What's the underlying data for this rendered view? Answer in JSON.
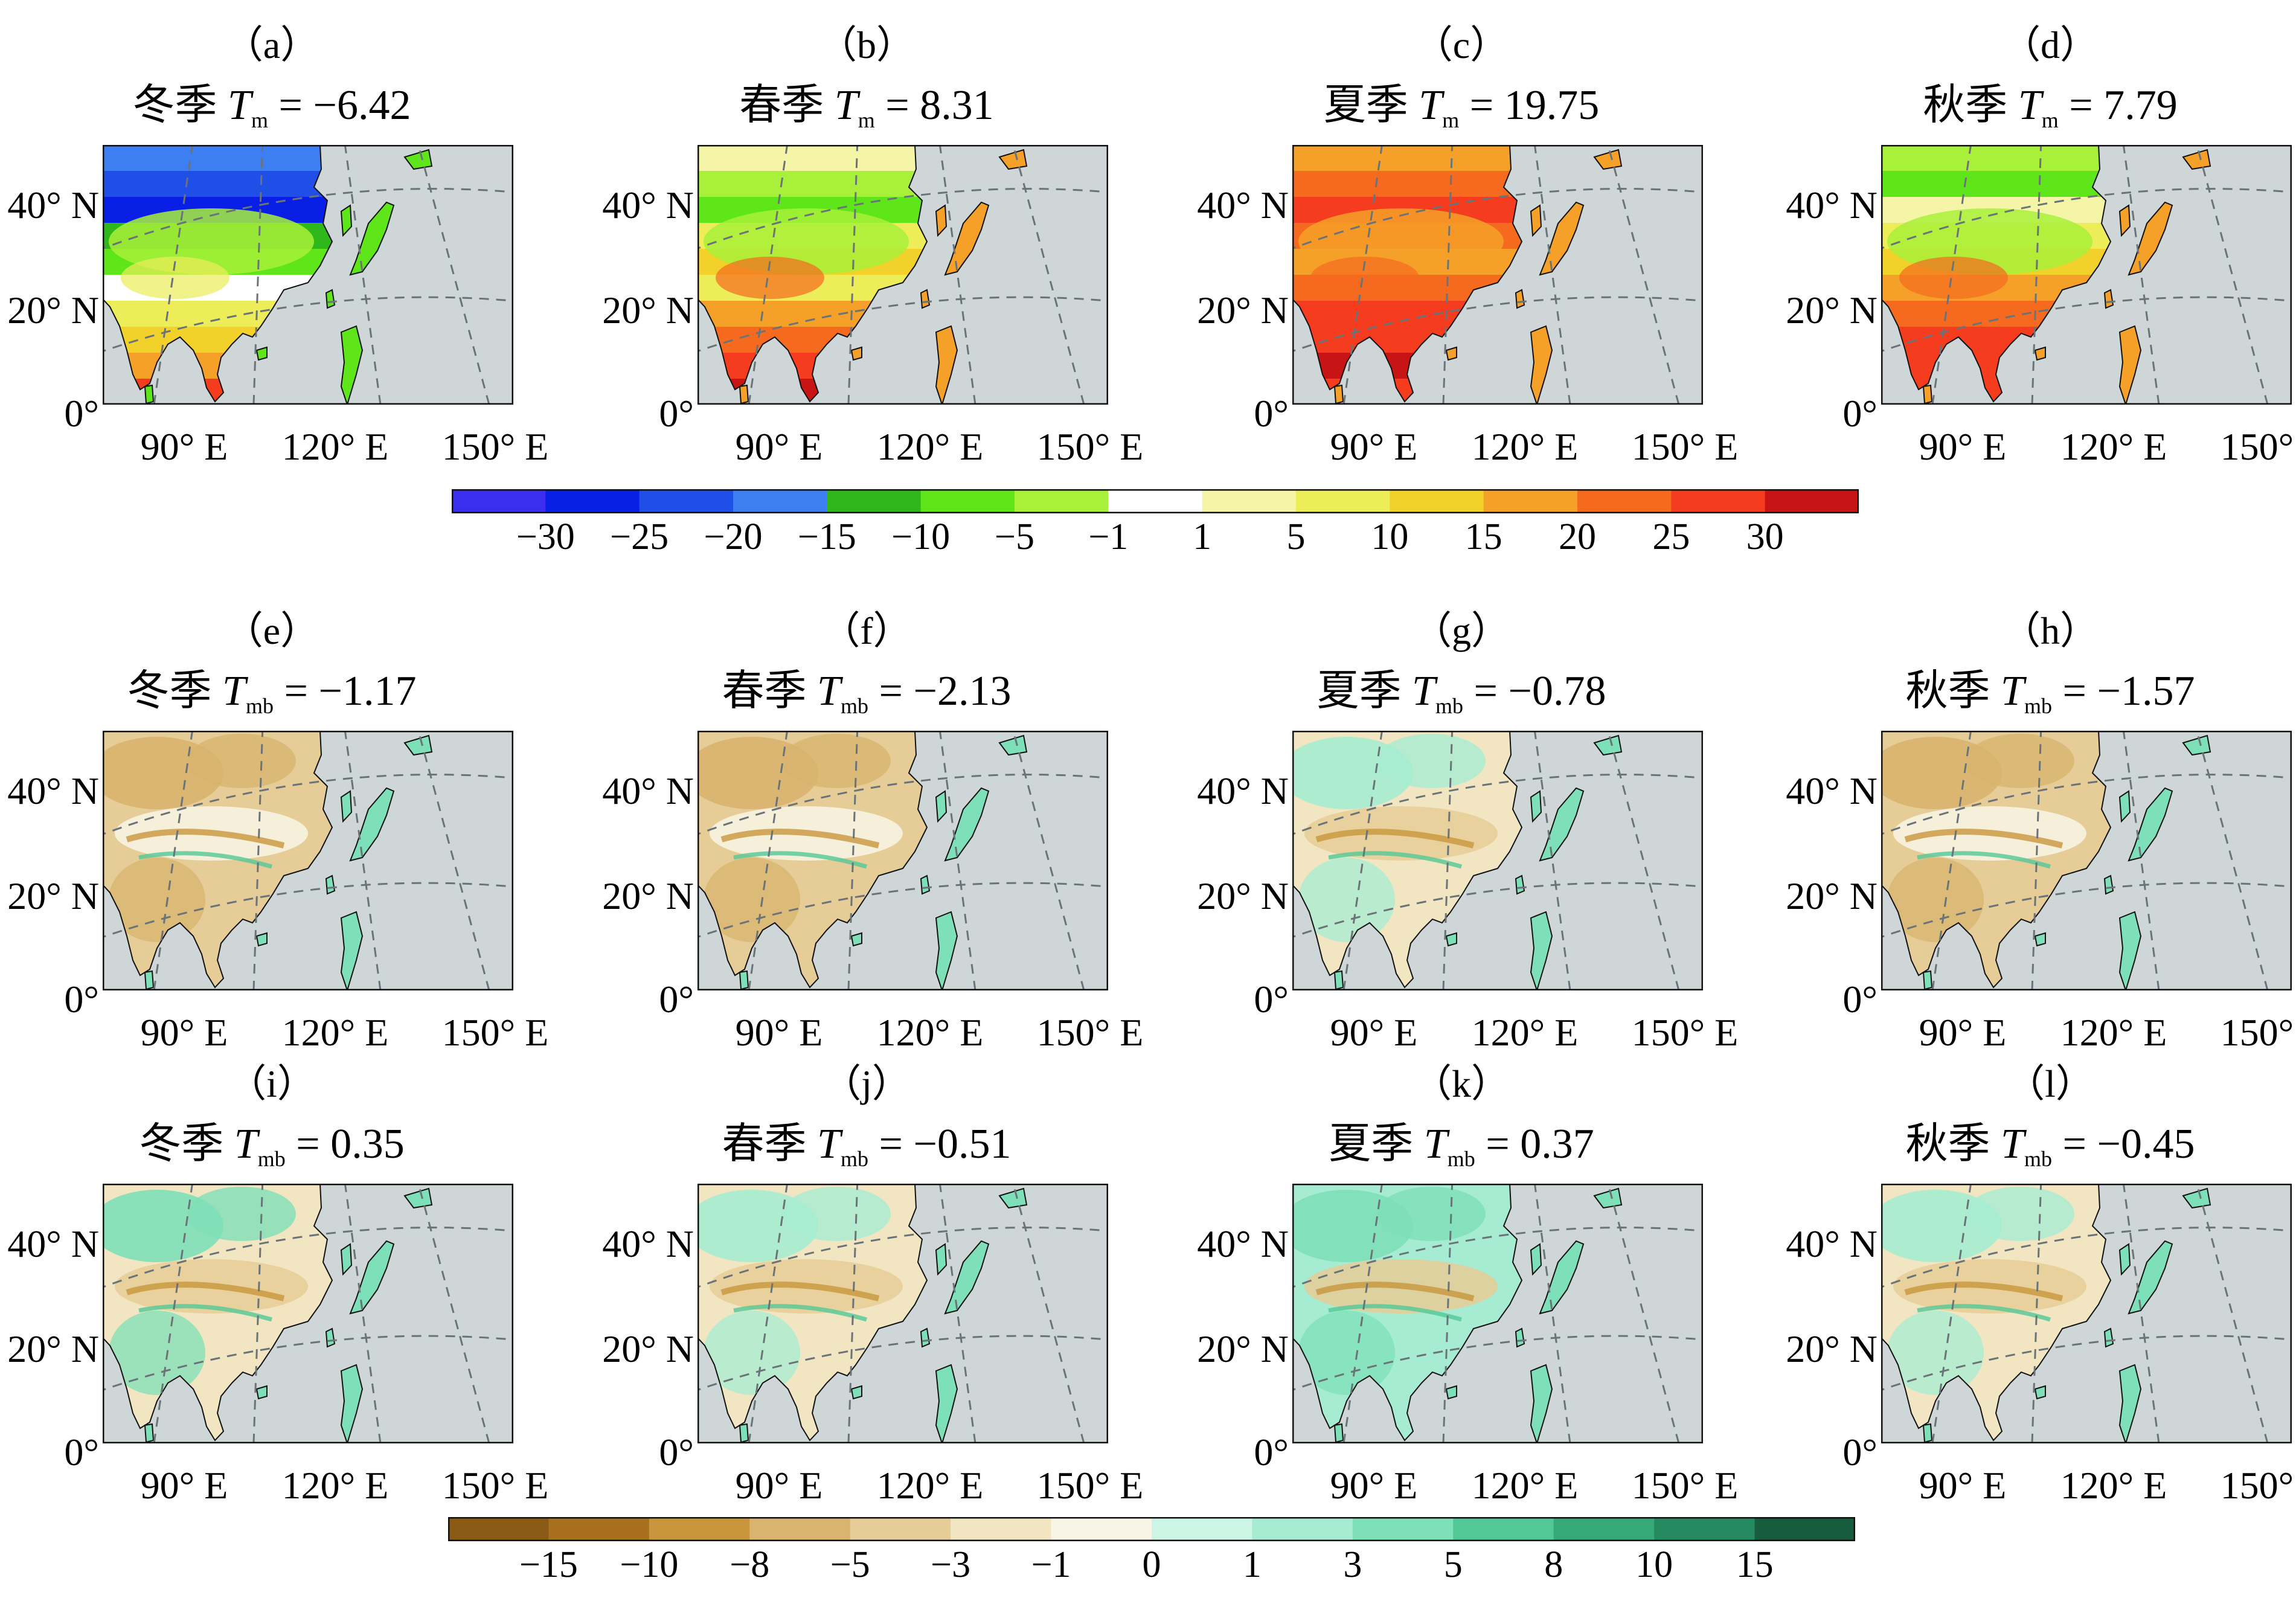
{
  "panels": [
    {
      "label": "（a）",
      "season": "冬季",
      "sym": "T",
      "sub": "m",
      "value": "= −6.42",
      "kind": "abs",
      "variant": "winter"
    },
    {
      "label": "（b）",
      "season": "春季",
      "sym": "T",
      "sub": "m",
      "value": "= 8.31",
      "kind": "abs",
      "variant": "spring"
    },
    {
      "label": "（c）",
      "season": "夏季",
      "sym": "T",
      "sub": "m",
      "value": "= 19.75",
      "kind": "abs",
      "variant": "summer"
    },
    {
      "label": "（d）",
      "season": "秋季",
      "sym": "T",
      "sub": "m",
      "value": "= 7.79",
      "kind": "abs",
      "variant": "autumn"
    },
    {
      "label": "（e）",
      "season": "冬季",
      "sym": "T",
      "sub": "mb",
      "value": "= −1.17",
      "kind": "bias",
      "variant": "dry"
    },
    {
      "label": "（f）",
      "season": "春季",
      "sym": "T",
      "sub": "mb",
      "value": "= −2.13",
      "kind": "bias",
      "variant": "dry"
    },
    {
      "label": "（g）",
      "season": "夏季",
      "sym": "T",
      "sub": "mb",
      "value": "= −0.78",
      "kind": "bias",
      "variant": "mixed"
    },
    {
      "label": "（h）",
      "season": "秋季",
      "sym": "T",
      "sub": "mb",
      "value": "= −1.57",
      "kind": "bias",
      "variant": "dry"
    },
    {
      "label": "（i）",
      "season": "冬季",
      "sym": "T",
      "sub": "mb",
      "value": "= 0.35",
      "kind": "bias",
      "variant": "wetnorth"
    },
    {
      "label": "（j）",
      "season": "春季",
      "sym": "T",
      "sub": "mb",
      "value": "= −0.51",
      "kind": "bias",
      "variant": "mixed"
    },
    {
      "label": "（k）",
      "season": "夏季",
      "sym": "T",
      "sub": "mb",
      "value": "= 0.37",
      "kind": "bias",
      "variant": "wet"
    },
    {
      "label": "（l）",
      "season": "秋季",
      "sym": "T",
      "sub": "mb",
      "value": "= −0.45",
      "kind": "bias",
      "variant": "mixed"
    }
  ],
  "map_axes": {
    "lat_ticks": [
      "40° N",
      "20° N",
      "0°"
    ],
    "lon_ticks": [
      "90° E",
      "120° E",
      "150° E"
    ]
  },
  "colorbars": [
    {
      "name": "temperature",
      "ticks": [
        "−30",
        "−25",
        "−20",
        "−15",
        "−10",
        "−5",
        "−1",
        "1",
        "5",
        "10",
        "15",
        "20",
        "25",
        "30"
      ],
      "colors": [
        "#3b2ef0",
        "#0a1fe6",
        "#1f4fe6",
        "#3d7ef2",
        "#2fb81a",
        "#5fe61a",
        "#a8f03a",
        "#ffffff",
        "#f5f5a8",
        "#eded5a",
        "#f2d22a",
        "#f5a028",
        "#f56a1e",
        "#f53c1e",
        "#c81414"
      ]
    },
    {
      "name": "bias",
      "ticks": [
        "−15",
        "−10",
        "−8",
        "−5",
        "−3",
        "−1",
        "0",
        "1",
        "3",
        "5",
        "8",
        "10",
        "15"
      ],
      "colors": [
        "#8b5a14",
        "#a8701e",
        "#c8963c",
        "#d8b46e",
        "#e6cc96",
        "#f2e6c2",
        "#f8f4e6",
        "#ccf5e6",
        "#a6ecd2",
        "#7ee0b8",
        "#52c896",
        "#37a878",
        "#268a60",
        "#175c3c"
      ]
    }
  ],
  "chart_data": {
    "type": "heatmap",
    "units_hint": "maps",
    "panels": [
      {
        "id": "a",
        "field": "Tm",
        "season": "冬季",
        "mean": -6.42
      },
      {
        "id": "b",
        "field": "Tm",
        "season": "春季",
        "mean": 8.31
      },
      {
        "id": "c",
        "field": "Tm",
        "season": "夏季",
        "mean": 19.75
      },
      {
        "id": "d",
        "field": "Tm",
        "season": "秋季",
        "mean": 7.79
      },
      {
        "id": "e",
        "field": "Tmb",
        "season": "冬季",
        "mean": -1.17
      },
      {
        "id": "f",
        "field": "Tmb",
        "season": "春季",
        "mean": -2.13
      },
      {
        "id": "g",
        "field": "Tmb",
        "season": "夏季",
        "mean": -0.78
      },
      {
        "id": "h",
        "field": "Tmb",
        "season": "秋季",
        "mean": -1.57
      },
      {
        "id": "i",
        "field": "Tmb",
        "season": "冬季",
        "mean": 0.35
      },
      {
        "id": "j",
        "field": "Tmb",
        "season": "春季",
        "mean": -0.51
      },
      {
        "id": "k",
        "field": "Tmb",
        "season": "夏季",
        "mean": 0.37
      },
      {
        "id": "l",
        "field": "Tmb",
        "season": "秋季",
        "mean": -0.45
      }
    ],
    "lat_range": [
      0,
      50
    ],
    "lon_range": [
      70,
      150
    ],
    "colorbar1_ticks": [
      -30,
      -25,
      -20,
      -15,
      -10,
      -5,
      -1,
      1,
      5,
      10,
      15,
      20,
      25,
      30
    ],
    "colorbar2_ticks": [
      -15,
      -10,
      -8,
      -5,
      -3,
      -1,
      0,
      1,
      3,
      5,
      8,
      10,
      15
    ]
  }
}
